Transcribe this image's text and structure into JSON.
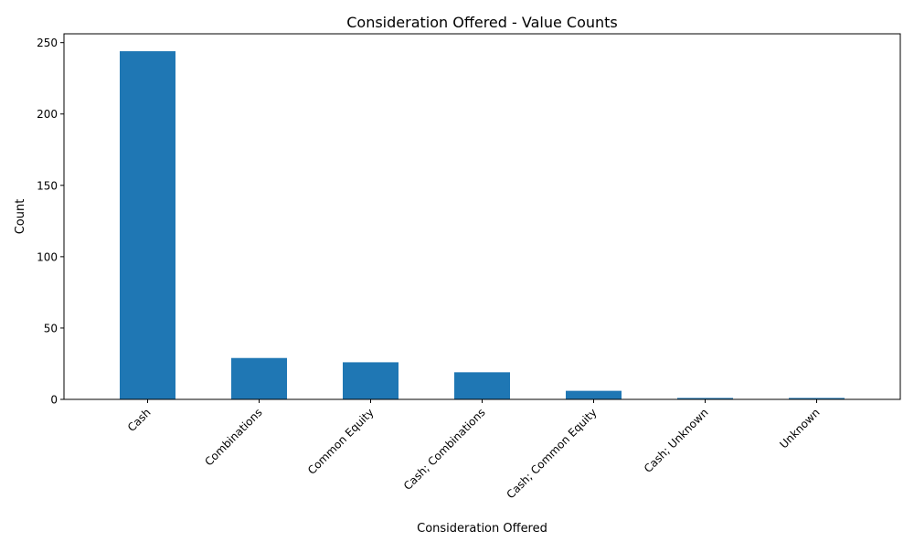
{
  "chart_data": {
    "type": "bar",
    "title": "Consideration Offered - Value Counts",
    "xlabel": "Consideration Offered",
    "ylabel": "Count",
    "categories": [
      "Cash",
      "Combinations",
      "Common Equity",
      "Cash; Combinations",
      "Cash; Common Equity",
      "Cash; Unknown",
      "Unknown"
    ],
    "values": [
      244,
      29,
      26,
      19,
      6,
      1,
      1
    ],
    "ylim": [
      0,
      256.2
    ],
    "yticks": [
      0,
      50,
      100,
      150,
      200,
      250
    ],
    "grid": false,
    "legend": "none",
    "bar_color": "#1f77b4"
  }
}
